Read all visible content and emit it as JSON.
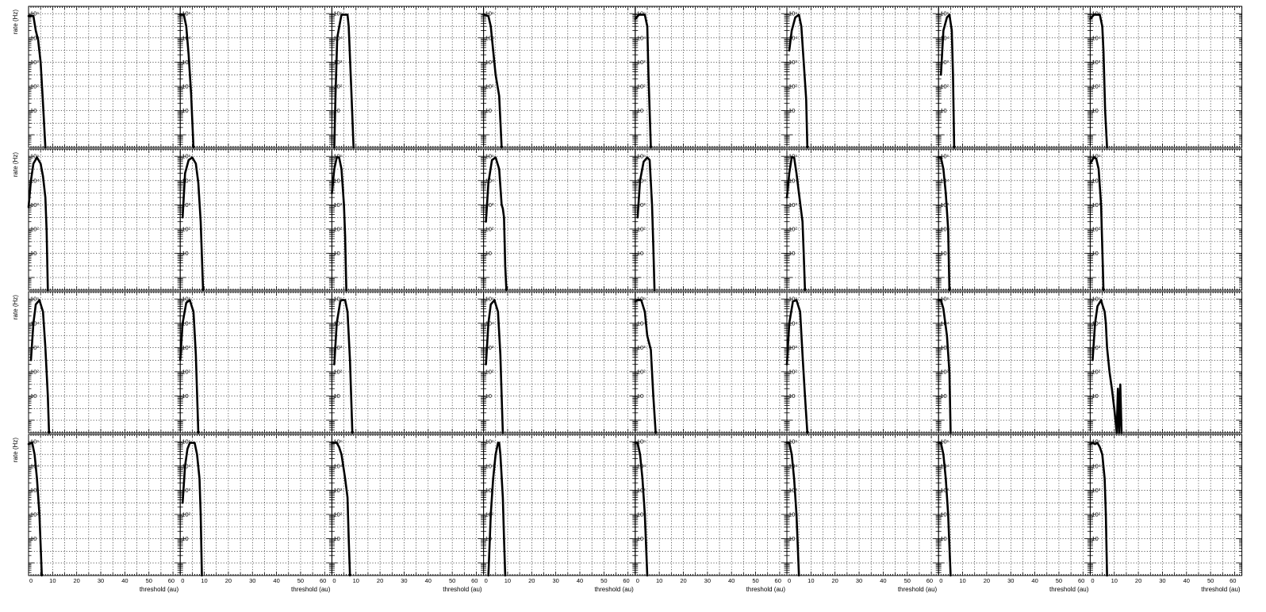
{
  "chart_data": {
    "type": "line",
    "layout": {
      "rows": 4,
      "cols": 8
    },
    "xlabel": "threshold (au)",
    "ylabel": "rate (Hz)",
    "xlim": [
      0,
      63
    ],
    "ylim": [
      0.3,
      200000
    ],
    "yscale": "log",
    "grid": true,
    "x_ticks": [
      0,
      10,
      20,
      30,
      40,
      50,
      60
    ],
    "y_ticks": [
      {
        "value": 10,
        "label": "10"
      },
      {
        "value": 100,
        "label": "10²"
      },
      {
        "value": 1000,
        "label": "10³"
      },
      {
        "value": 10000,
        "label": "10⁴"
      },
      {
        "value": 100000,
        "label": "10⁵"
      }
    ],
    "panels": [
      {
        "row": 0,
        "col": 0,
        "points": [
          [
            0,
            80000
          ],
          [
            2,
            80000
          ],
          [
            3,
            20000
          ],
          [
            4,
            8000
          ],
          [
            5,
            1000
          ],
          [
            6,
            20
          ],
          [
            7,
            0.3
          ]
        ]
      },
      {
        "row": 0,
        "col": 1,
        "points": [
          [
            0,
            90000
          ],
          [
            1.5,
            90000
          ],
          [
            2.5,
            30000
          ],
          [
            3.5,
            2000
          ],
          [
            4.5,
            50
          ],
          [
            5.5,
            0.3
          ]
        ]
      },
      {
        "row": 0,
        "col": 2,
        "points": [
          [
            1,
            0.3
          ],
          [
            1.5,
            50
          ],
          [
            2.2,
            10000
          ],
          [
            3.5,
            50000
          ],
          [
            4,
            90000
          ],
          [
            6.5,
            90000
          ],
          [
            7,
            30000
          ],
          [
            8,
            100
          ],
          [
            9,
            0.3
          ]
        ]
      },
      {
        "row": 0,
        "col": 3,
        "points": [
          [
            0,
            90000
          ],
          [
            2,
            80000
          ],
          [
            3,
            30000
          ],
          [
            4,
            3000
          ],
          [
            5,
            300
          ],
          [
            6.5,
            40
          ],
          [
            7.5,
            0.3
          ]
        ]
      },
      {
        "row": 0,
        "col": 4,
        "points": [
          [
            0,
            60000
          ],
          [
            1.5,
            90000
          ],
          [
            4,
            90000
          ],
          [
            5,
            30000
          ],
          [
            5.5,
            300
          ],
          [
            6.5,
            0.3
          ]
        ]
      },
      {
        "row": 0,
        "col": 5,
        "points": [
          [
            1,
            3000
          ],
          [
            2,
            20000
          ],
          [
            3.5,
            70000
          ],
          [
            5,
            90000
          ],
          [
            6,
            30000
          ],
          [
            7,
            1000
          ],
          [
            8,
            30
          ],
          [
            8.5,
            0.3
          ]
        ]
      },
      {
        "row": 0,
        "col": 6,
        "points": [
          [
            1,
            300
          ],
          [
            2,
            20000
          ],
          [
            3.5,
            70000
          ],
          [
            4.5,
            90000
          ],
          [
            5.5,
            20000
          ],
          [
            6,
            300
          ],
          [
            6.5,
            0.3
          ]
        ]
      },
      {
        "row": 0,
        "col": 7,
        "points": [
          [
            0,
            60000
          ],
          [
            1.5,
            90000
          ],
          [
            4,
            90000
          ],
          [
            5,
            30000
          ],
          [
            5.5,
            3000
          ],
          [
            6.2,
            10
          ],
          [
            7,
            0.3
          ]
        ]
      },
      {
        "row": 1,
        "col": 0,
        "points": [
          [
            0,
            800
          ],
          [
            1,
            10000
          ],
          [
            2,
            50000
          ],
          [
            3.5,
            90000
          ],
          [
            5,
            50000
          ],
          [
            6,
            15000
          ],
          [
            7,
            2000
          ],
          [
            7.5,
            80
          ],
          [
            8,
            0.3
          ]
        ]
      },
      {
        "row": 1,
        "col": 1,
        "points": [
          [
            1,
            300
          ],
          [
            2,
            20000
          ],
          [
            3.5,
            70000
          ],
          [
            5,
            90000
          ],
          [
            6.5,
            50000
          ],
          [
            7.5,
            8000
          ],
          [
            8.5,
            200
          ],
          [
            9.5,
            0.3
          ]
        ]
      },
      {
        "row": 1,
        "col": 2,
        "points": [
          [
            0,
            3000
          ],
          [
            1,
            30000
          ],
          [
            2,
            90000
          ],
          [
            3,
            90000
          ],
          [
            4,
            30000
          ],
          [
            5,
            1000
          ],
          [
            5.5,
            50
          ],
          [
            6,
            0.3
          ]
        ]
      },
      {
        "row": 1,
        "col": 3,
        "points": [
          [
            1,
            200
          ],
          [
            2,
            8000
          ],
          [
            3.5,
            70000
          ],
          [
            5,
            90000
          ],
          [
            6.5,
            30000
          ],
          [
            7.5,
            1000
          ],
          [
            8,
            700
          ],
          [
            8.5,
            300
          ],
          [
            9,
            3
          ],
          [
            9.5,
            0.3
          ]
        ]
      },
      {
        "row": 1,
        "col": 4,
        "points": [
          [
            1,
            300
          ],
          [
            2,
            10000
          ],
          [
            3.5,
            60000
          ],
          [
            5,
            90000
          ],
          [
            6,
            70000
          ],
          [
            7,
            1000
          ],
          [
            7.5,
            20
          ],
          [
            8,
            0.3
          ]
        ]
      },
      {
        "row": 1,
        "col": 5,
        "points": [
          [
            0,
            2000
          ],
          [
            1,
            20000
          ],
          [
            2,
            90000
          ],
          [
            3,
            90000
          ],
          [
            4,
            20000
          ],
          [
            5,
            3000
          ],
          [
            6.5,
            200
          ],
          [
            7,
            10
          ],
          [
            7.5,
            0.3
          ]
        ]
      },
      {
        "row": 1,
        "col": 6,
        "points": [
          [
            0,
            90000
          ],
          [
            1,
            90000
          ],
          [
            2,
            30000
          ],
          [
            3,
            3000
          ],
          [
            4,
            100
          ],
          [
            4.5,
            0.3
          ]
        ]
      },
      {
        "row": 1,
        "col": 7,
        "points": [
          [
            0,
            50000
          ],
          [
            1.5,
            90000
          ],
          [
            2.5,
            80000
          ],
          [
            3.5,
            30000
          ],
          [
            4.5,
            1000
          ],
          [
            5.5,
            0.3
          ]
        ]
      },
      {
        "row": 2,
        "col": 0,
        "points": [
          [
            1,
            300
          ],
          [
            2,
            10000
          ],
          [
            3,
            60000
          ],
          [
            4.5,
            90000
          ],
          [
            6,
            30000
          ],
          [
            7,
            1000
          ],
          [
            8,
            10
          ],
          [
            8.5,
            0.3
          ]
        ]
      },
      {
        "row": 2,
        "col": 1,
        "points": [
          [
            0,
            300
          ],
          [
            1,
            10000
          ],
          [
            2.5,
            70000
          ],
          [
            4,
            90000
          ],
          [
            5.5,
            30000
          ],
          [
            6.5,
            500
          ],
          [
            7.5,
            0.3
          ]
        ]
      },
      {
        "row": 2,
        "col": 2,
        "points": [
          [
            1,
            200
          ],
          [
            2,
            10000
          ],
          [
            3.5,
            80000
          ],
          [
            4,
            90000
          ],
          [
            5.5,
            90000
          ],
          [
            6.5,
            30000
          ],
          [
            7.5,
            300
          ],
          [
            8.5,
            0.3
          ]
        ]
      },
      {
        "row": 2,
        "col": 3,
        "points": [
          [
            1,
            200
          ],
          [
            2,
            10000
          ],
          [
            3,
            60000
          ],
          [
            4.5,
            90000
          ],
          [
            6,
            30000
          ],
          [
            7,
            500
          ],
          [
            7.5,
            10
          ],
          [
            8,
            0.3
          ]
        ]
      },
      {
        "row": 2,
        "col": 4,
        "points": [
          [
            0,
            80000
          ],
          [
            1,
            90000
          ],
          [
            2.5,
            90000
          ],
          [
            4,
            30000
          ],
          [
            5,
            3000
          ],
          [
            6.5,
            800
          ],
          [
            7.5,
            10
          ],
          [
            8.5,
            0.3
          ]
        ]
      },
      {
        "row": 2,
        "col": 5,
        "points": [
          [
            0,
            200
          ],
          [
            1,
            10000
          ],
          [
            2.5,
            80000
          ],
          [
            4,
            90000
          ],
          [
            5.5,
            30000
          ],
          [
            6.5,
            500
          ],
          [
            7.5,
            10
          ],
          [
            8.5,
            0.3
          ]
        ]
      },
      {
        "row": 2,
        "col": 6,
        "points": [
          [
            0,
            90000
          ],
          [
            1,
            90000
          ],
          [
            2,
            40000
          ],
          [
            3.5,
            3000
          ],
          [
            4.5,
            100
          ],
          [
            5,
            0.3
          ]
        ]
      },
      {
        "row": 2,
        "col": 7,
        "points": [
          [
            1,
            300
          ],
          [
            2,
            10000
          ],
          [
            3,
            50000
          ],
          [
            4.5,
            90000
          ],
          [
            5,
            60000
          ],
          [
            6,
            30000
          ],
          [
            6.5,
            10000
          ],
          [
            7,
            1000
          ],
          [
            8,
            100
          ],
          [
            9,
            20
          ],
          [
            10,
            3
          ],
          [
            11,
            0.3
          ],
          [
            11.5,
            20
          ],
          [
            12,
            0.3
          ],
          [
            12.5,
            30
          ],
          [
            13,
            0.3
          ]
        ]
      },
      {
        "row": 3,
        "col": 0,
        "points": [
          [
            0,
            80000
          ],
          [
            1.5,
            90000
          ],
          [
            2.5,
            30000
          ],
          [
            3.5,
            3000
          ],
          [
            4.5,
            100
          ],
          [
            5.5,
            0.3
          ]
        ]
      },
      {
        "row": 3,
        "col": 1,
        "points": [
          [
            1,
            300
          ],
          [
            2,
            10000
          ],
          [
            3,
            50000
          ],
          [
            4,
            90000
          ],
          [
            6,
            90000
          ],
          [
            7,
            30000
          ],
          [
            8,
            3000
          ],
          [
            8.5,
            100
          ],
          [
            9,
            0.3
          ]
        ]
      },
      {
        "row": 3,
        "col": 2,
        "points": [
          [
            0,
            90000
          ],
          [
            2,
            90000
          ],
          [
            3,
            60000
          ],
          [
            4,
            30000
          ],
          [
            5.5,
            3000
          ],
          [
            6.5,
            500
          ],
          [
            7,
            10
          ],
          [
            7.5,
            0.3
          ]
        ]
      },
      {
        "row": 3,
        "col": 3,
        "points": [
          [
            2,
            0.3
          ],
          [
            3,
            100
          ],
          [
            4,
            3000
          ],
          [
            5,
            30000
          ],
          [
            6,
            90000
          ],
          [
            6.5,
            90000
          ],
          [
            7,
            30000
          ],
          [
            8,
            500
          ],
          [
            8.5,
            10
          ],
          [
            9,
            0.3
          ]
        ]
      },
      {
        "row": 3,
        "col": 4,
        "points": [
          [
            0,
            90000
          ],
          [
            1,
            90000
          ],
          [
            2,
            30000
          ],
          [
            3,
            3000
          ],
          [
            4,
            100
          ],
          [
            5,
            0.3
          ]
        ]
      },
      {
        "row": 3,
        "col": 5,
        "points": [
          [
            0,
            90000
          ],
          [
            1,
            90000
          ],
          [
            2,
            30000
          ],
          [
            3,
            3000
          ],
          [
            4,
            100
          ],
          [
            5,
            0.3
          ]
        ]
      },
      {
        "row": 3,
        "col": 6,
        "points": [
          [
            0,
            90000
          ],
          [
            1,
            90000
          ],
          [
            2,
            30000
          ],
          [
            3,
            3000
          ],
          [
            4,
            100
          ],
          [
            5,
            0.3
          ]
        ]
      },
      {
        "row": 3,
        "col": 7,
        "points": [
          [
            0,
            80000
          ],
          [
            1,
            90000
          ],
          [
            2,
            80000
          ],
          [
            3,
            90000
          ],
          [
            4,
            60000
          ],
          [
            5,
            30000
          ],
          [
            6,
            3000
          ],
          [
            6.5,
            100
          ],
          [
            7,
            0.3
          ]
        ]
      }
    ]
  }
}
